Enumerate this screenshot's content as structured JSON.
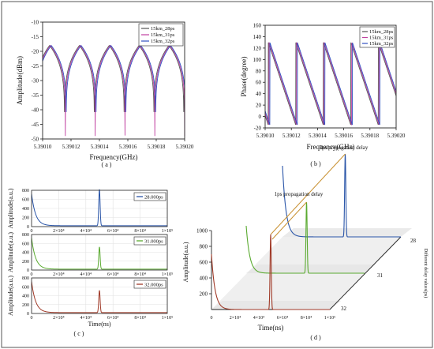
{
  "figure": {
    "captions": [
      "( a )",
      "( b )",
      "( c )",
      "( d )"
    ]
  },
  "chart_data": [
    {
      "id": "a",
      "type": "line",
      "xlabel": "Frequency(GHz)",
      "ylabel": "Amplitude(dBm)",
      "xlim": [
        5.3901,
        5.3902
      ],
      "ylim": [
        -50,
        -10
      ],
      "xticks": [
        "5.39010",
        "5.39012",
        "5.39014",
        "5.39016",
        "5.39018",
        "5.39020"
      ],
      "yticks": [
        "-10",
        "-15",
        "-20",
        "-25",
        "-30",
        "-35",
        "-40",
        "-45",
        "-50"
      ],
      "legend_position": "top-right",
      "peak_value": -18,
      "dip_value": -49,
      "notch_frequencies": [
        5.390116,
        5.390137,
        5.390158,
        5.390179
      ],
      "series": [
        {
          "name": "15km_28ps",
          "color": "#555555",
          "notch_offset_ghz": -6e-07
        },
        {
          "name": "15km_31ps",
          "color": "#c040a0",
          "notch_offset_ghz": 0.0
        },
        {
          "name": "15km_32ps",
          "color": "#3050c0",
          "notch_offset_ghz": 6e-07
        }
      ]
    },
    {
      "id": "b",
      "type": "line",
      "xlabel": "Frequency(GHz)",
      "ylabel": "Phase(degree)",
      "xlim": [
        5.3901,
        5.3902
      ],
      "ylim": [
        -20,
        160
      ],
      "xticks": [
        "5.39010",
        "5.39012",
        "5.39014",
        "5.39016",
        "5.39018",
        "5.39020"
      ],
      "yticks": [
        "160",
        "140",
        "120",
        "100",
        "80",
        "60",
        "40",
        "20",
        "0",
        "-20"
      ],
      "legend_position": "top-right",
      "phase_high": 130,
      "phase_low": -15,
      "period_ghz": 2.1e-05,
      "wrap_frequencies": [
        5.390103,
        5.390124,
        5.390145,
        5.390166,
        5.390187
      ],
      "series": [
        {
          "name": "15km_28ps",
          "color": "#555555",
          "offset_ghz": -6e-07
        },
        {
          "name": "15km_31ps",
          "color": "#c040a0",
          "offset_ghz": 0.0
        },
        {
          "name": "15km_32ps",
          "color": "#3050c0",
          "offset_ghz": 6e-07
        }
      ]
    },
    {
      "id": "c",
      "type": "line",
      "xlabel": "Time(ns)",
      "ylabel": "Amplitude(a.u.)",
      "xlim": [
        0,
        100000
      ],
      "ylim": [
        0,
        800
      ],
      "xticks": [
        "0",
        "2×10⁴",
        "4×10⁴",
        "6×10⁴",
        "8×10⁴",
        "1×10⁵"
      ],
      "yticks": [
        "800",
        "600",
        "400",
        "200",
        "0"
      ],
      "legend_position": "top-right",
      "initial_value": 700,
      "decay_constant_ns": 3000,
      "peak_time_ns": 50000,
      "series": [
        {
          "name": "28.000ps",
          "color": "#2a55a8",
          "peak_value": 820
        },
        {
          "name": "31.000ps",
          "color": "#5aaa30",
          "peak_value": 520
        },
        {
          "name": "32.000ps",
          "color": "#a03a28",
          "peak_value": 520
        }
      ]
    },
    {
      "id": "d",
      "type": "line",
      "xlabel": "Time(ns)",
      "ylabel": "Amplitude(a.u.)",
      "zlabel": "Different delay values(ps)",
      "xlim": [
        0,
        100000
      ],
      "ylim": [
        0,
        1000
      ],
      "xticks": [
        "0",
        "2×10⁴",
        "4×10⁴",
        "6×10⁴",
        "8×10⁴",
        "1×10⁵"
      ],
      "yticks": [
        "1000",
        "800",
        "600",
        "400",
        "200"
      ],
      "zticks": [
        "28",
        "31",
        "32"
      ],
      "annotations": [
        "3ps propagation delay",
        "1ps propagation delay"
      ],
      "decay_constant_ns": 3000,
      "series": [
        {
          "name": "28",
          "color": "#2a55a8",
          "initial_value": 900,
          "peak_time_ns": 53000,
          "peak_value": 1050
        },
        {
          "name": "31",
          "color": "#5aaa30",
          "initial_value": 600,
          "peak_time_ns": 51000,
          "peak_value": 900
        },
        {
          "name": "32",
          "color": "#a03a28",
          "initial_value": 700,
          "peak_time_ns": 50000,
          "peak_value": 950
        }
      ]
    }
  ]
}
